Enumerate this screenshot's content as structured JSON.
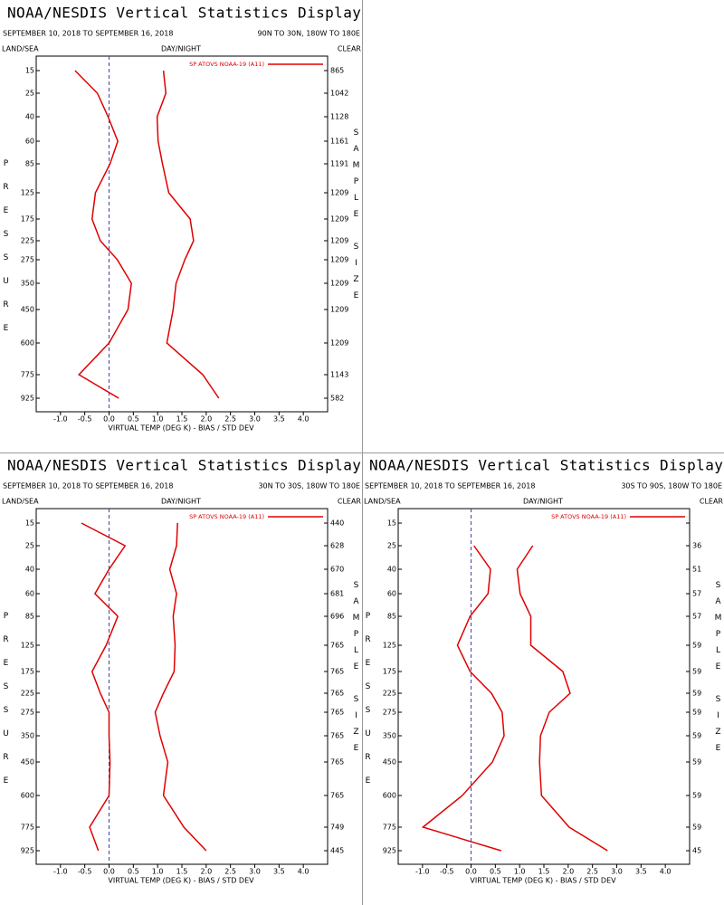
{
  "chart_data": [
    {
      "type": "line",
      "title": "NOAA/NESDIS Vertical Statistics Display",
      "subtitle": "SEPTEMBER 10, 2018 TO SEPTEMBER 16, 2018",
      "region": "90N TO 30N, 180W TO 180E",
      "land_sea": "LAND/SEA",
      "day_night": "DAY/NIGHT",
      "clear": "CLEAR",
      "y_label": "PRESSURE",
      "y2_label": "SAMPLE SIZE",
      "x_label": "VIRTUAL TEMP (DEG K) - BIAS / STD DEV",
      "categories": [
        15,
        25,
        40,
        60,
        85,
        125,
        175,
        225,
        275,
        350,
        450,
        600,
        775,
        925
      ],
      "sample_size": [
        865,
        1042,
        1128,
        1161,
        1191,
        1209,
        1209,
        1209,
        1209,
        1209,
        1209,
        1209,
        1143,
        582
      ],
      "series": [
        {
          "name": "SP ATOVS NOAA-19 (A11)",
          "color": "#e00000",
          "values": [
            -0.7,
            -0.24,
            -0.02,
            0.18,
            0.02,
            -0.28,
            -0.35,
            -0.18,
            0.17,
            0.46,
            0.39,
            0.0,
            -0.62,
            0.2
          ],
          "std_dev": [
            1.12,
            1.17,
            0.99,
            1.01,
            1.1,
            1.23,
            1.67,
            1.74,
            1.56,
            1.38,
            1.32,
            1.19,
            1.93,
            2.26
          ]
        }
      ],
      "xlim": [
        -1.5,
        4.5
      ],
      "xticks": [
        {
          "value": -1,
          "label": "-1.0"
        },
        {
          "value": -0.5,
          "label": "-0.5"
        },
        {
          "value": 0,
          "label": "0.0"
        },
        {
          "value": 0.5,
          "label": "0.5"
        },
        {
          "value": 1,
          "label": "1.0"
        },
        {
          "value": 1.5,
          "label": "1.5"
        },
        {
          "value": 2,
          "label": "2.0"
        },
        {
          "value": 2.5,
          "label": "2.5"
        },
        {
          "value": 3,
          "label": "3.0"
        },
        {
          "value": 3.5,
          "label": "3.5"
        },
        {
          "value": 4,
          "label": "4.0"
        }
      ]
    },
    {
      "type": "line",
      "title": "NOAA/NESDIS Vertical Statistics Display",
      "subtitle": "SEPTEMBER 10, 2018 TO SEPTEMBER 16, 2018",
      "region": "30N TO 30S, 180W TO 180E",
      "land_sea": "LAND/SEA",
      "day_night": "DAY/NIGHT",
      "clear": "CLEAR",
      "y_label": "PRESSURE",
      "y2_label": "SAMPLE SIZE",
      "x_label": "VIRTUAL TEMP (DEG K) - BIAS / STD DEV",
      "categories": [
        15,
        25,
        40,
        60,
        85,
        125,
        175,
        225,
        275,
        350,
        450,
        600,
        775,
        925
      ],
      "sample_size": [
        440,
        628,
        670,
        681,
        696,
        765,
        765,
        765,
        765,
        765,
        765,
        765,
        749,
        445
      ],
      "series": [
        {
          "name": "SP ATOVS NOAA-19 (A11)",
          "color": "#e00000",
          "values": [
            -0.57,
            0.33,
            0.0,
            -0.29,
            0.18,
            -0.06,
            -0.35,
            -0.18,
            0.0,
            0.0,
            0.02,
            0.0,
            -0.4,
            -0.22
          ],
          "std_dev": [
            1.41,
            1.39,
            1.25,
            1.39,
            1.32,
            1.36,
            1.34,
            1.12,
            0.95,
            1.05,
            1.21,
            1.12,
            1.54,
            2.0
          ]
        }
      ],
      "xlim": [
        -1.5,
        4.5
      ],
      "xticks": [
        {
          "value": -1,
          "label": "-1.0"
        },
        {
          "value": -0.5,
          "label": "-0.5"
        },
        {
          "value": 0,
          "label": "0.0"
        },
        {
          "value": 0.5,
          "label": "0.5"
        },
        {
          "value": 1,
          "label": "1.0"
        },
        {
          "value": 1.5,
          "label": "1.5"
        },
        {
          "value": 2,
          "label": "2.0"
        },
        {
          "value": 2.5,
          "label": "2.5"
        },
        {
          "value": 3,
          "label": "3.0"
        },
        {
          "value": 3.5,
          "label": "3.5"
        },
        {
          "value": 4,
          "label": "4.0"
        }
      ]
    },
    {
      "type": "line",
      "title": "NOAA/NESDIS Vertical Statistics Display",
      "subtitle": "SEPTEMBER 10, 2018 TO SEPTEMBER 16, 2018",
      "region": "30S TO 90S, 180W TO 180E",
      "land_sea": "LAND/SEA",
      "day_night": "DAY/NIGHT",
      "clear": "CLEAR",
      "y_label": "PRESSURE",
      "y2_label": "SAMPLE SIZE",
      "x_label": "VIRTUAL TEMP (DEG K) - BIAS / STD DEV",
      "categories": [
        15,
        25,
        40,
        60,
        85,
        125,
        175,
        225,
        275,
        350,
        450,
        600,
        775,
        925
      ],
      "sample_size": [
        null,
        36,
        51,
        57,
        57,
        59,
        59,
        59,
        59,
        59,
        59,
        59,
        59,
        45
      ],
      "series": [
        {
          "name": "SP ATOVS NOAA-19 (A11)",
          "color": "#e00000",
          "values": [
            null,
            0.06,
            0.4,
            0.35,
            -0.02,
            -0.28,
            -0.02,
            0.42,
            0.64,
            0.68,
            0.44,
            -0.18,
            -0.99,
            0.62
          ],
          "std_dev": [
            null,
            1.27,
            0.95,
            1.01,
            1.23,
            1.23,
            1.89,
            2.04,
            1.61,
            1.43,
            1.41,
            1.45,
            2.02,
            2.81
          ]
        }
      ],
      "xlim": [
        -1.5,
        4.5
      ],
      "xticks": [
        {
          "value": -1,
          "label": "-1.0"
        },
        {
          "value": -0.5,
          "label": "-0.5"
        },
        {
          "value": 0,
          "label": "0.0"
        },
        {
          "value": 0.5,
          "label": "0.5"
        },
        {
          "value": 1,
          "label": "1.0"
        },
        {
          "value": 1.5,
          "label": "1.5"
        },
        {
          "value": 2,
          "label": "2.0"
        },
        {
          "value": 2.5,
          "label": "2.5"
        },
        {
          "value": 3,
          "label": "3.0"
        },
        {
          "value": 3.5,
          "label": "3.5"
        },
        {
          "value": 4,
          "label": "4.0"
        }
      ]
    }
  ]
}
